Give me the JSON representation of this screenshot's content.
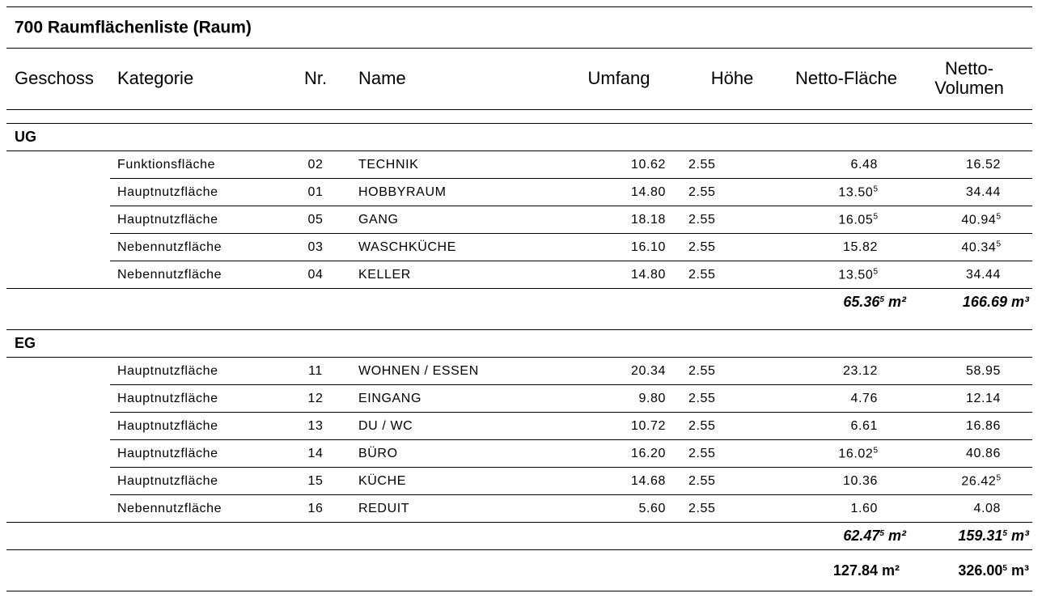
{
  "title": "700 Raumflächenliste (Raum)",
  "columns": [
    "Geschoss",
    "Kategorie",
    "Nr.",
    "Name",
    "Umfang",
    "Höhe",
    "Netto-Fläche",
    "Netto-Volumen"
  ],
  "groups": [
    {
      "name": "UG",
      "rows": [
        [
          "Funktionsfläche",
          "02",
          "TECHNIK",
          "10.62",
          "2.55",
          "6.48",
          "16.52"
        ],
        [
          "Hauptnutzfläche",
          "01",
          "HOBBYRAUM",
          "14.80",
          "2.55",
          {
            "value": "13.50",
            "sup": "5"
          },
          "34.44"
        ],
        [
          "Hauptnutzfläche",
          "05",
          "GANG",
          "18.18",
          "2.55",
          {
            "value": "16.05",
            "sup": "5"
          },
          {
            "value": "40.94",
            "sup": "5"
          }
        ],
        [
          "Nebennutzfläche",
          "03",
          "WASCHKÜCHE",
          "16.10",
          "2.55",
          "15.82",
          {
            "value": "40.34",
            "sup": "5"
          }
        ],
        [
          "Nebennutzfläche",
          "04",
          "KELLER",
          "14.80",
          "2.55",
          {
            "value": "13.50",
            "sup": "5"
          },
          "34.44"
        ]
      ],
      "total": {
        "area": {
          "value": "65.36",
          "sup": "5",
          "unit": "m²"
        },
        "volume": {
          "value": "166.69",
          "unit": "m³"
        }
      }
    },
    {
      "name": "EG",
      "rows": [
        [
          "Hauptnutzfläche",
          "11",
          "WOHNEN / ESSEN",
          "20.34",
          "2.55",
          "23.12",
          "58.95"
        ],
        [
          "Hauptnutzfläche",
          "12",
          "EINGANG",
          "9.80",
          "2.55",
          "4.76",
          "12.14"
        ],
        [
          "Hauptnutzfläche",
          "13",
          "DU / WC",
          "10.72",
          "2.55",
          "6.61",
          "16.86"
        ],
        [
          "Hauptnutzfläche",
          "14",
          "BÜRO",
          "16.20",
          "2.55",
          {
            "value": "16.02",
            "sup": "5"
          },
          "40.86"
        ],
        [
          "Hauptnutzfläche",
          "15",
          "KÜCHE",
          "14.68",
          "2.55",
          "10.36",
          {
            "value": "26.42",
            "sup": "5"
          }
        ],
        [
          "Nebennutzfläche",
          "16",
          "REDUIT",
          "5.60",
          "2.55",
          "1.60",
          "4.08"
        ]
      ],
      "total": {
        "area": {
          "value": "62.47",
          "sup": "5",
          "unit": "m²"
        },
        "volume": {
          "value": "159.31",
          "sup": "5",
          "unit": "m³"
        }
      }
    }
  ],
  "grand_total": {
    "area": {
      "value": "127.84",
      "unit": "m²"
    },
    "volume": {
      "value": "326.00",
      "sup": "5",
      "unit": "m³"
    }
  }
}
